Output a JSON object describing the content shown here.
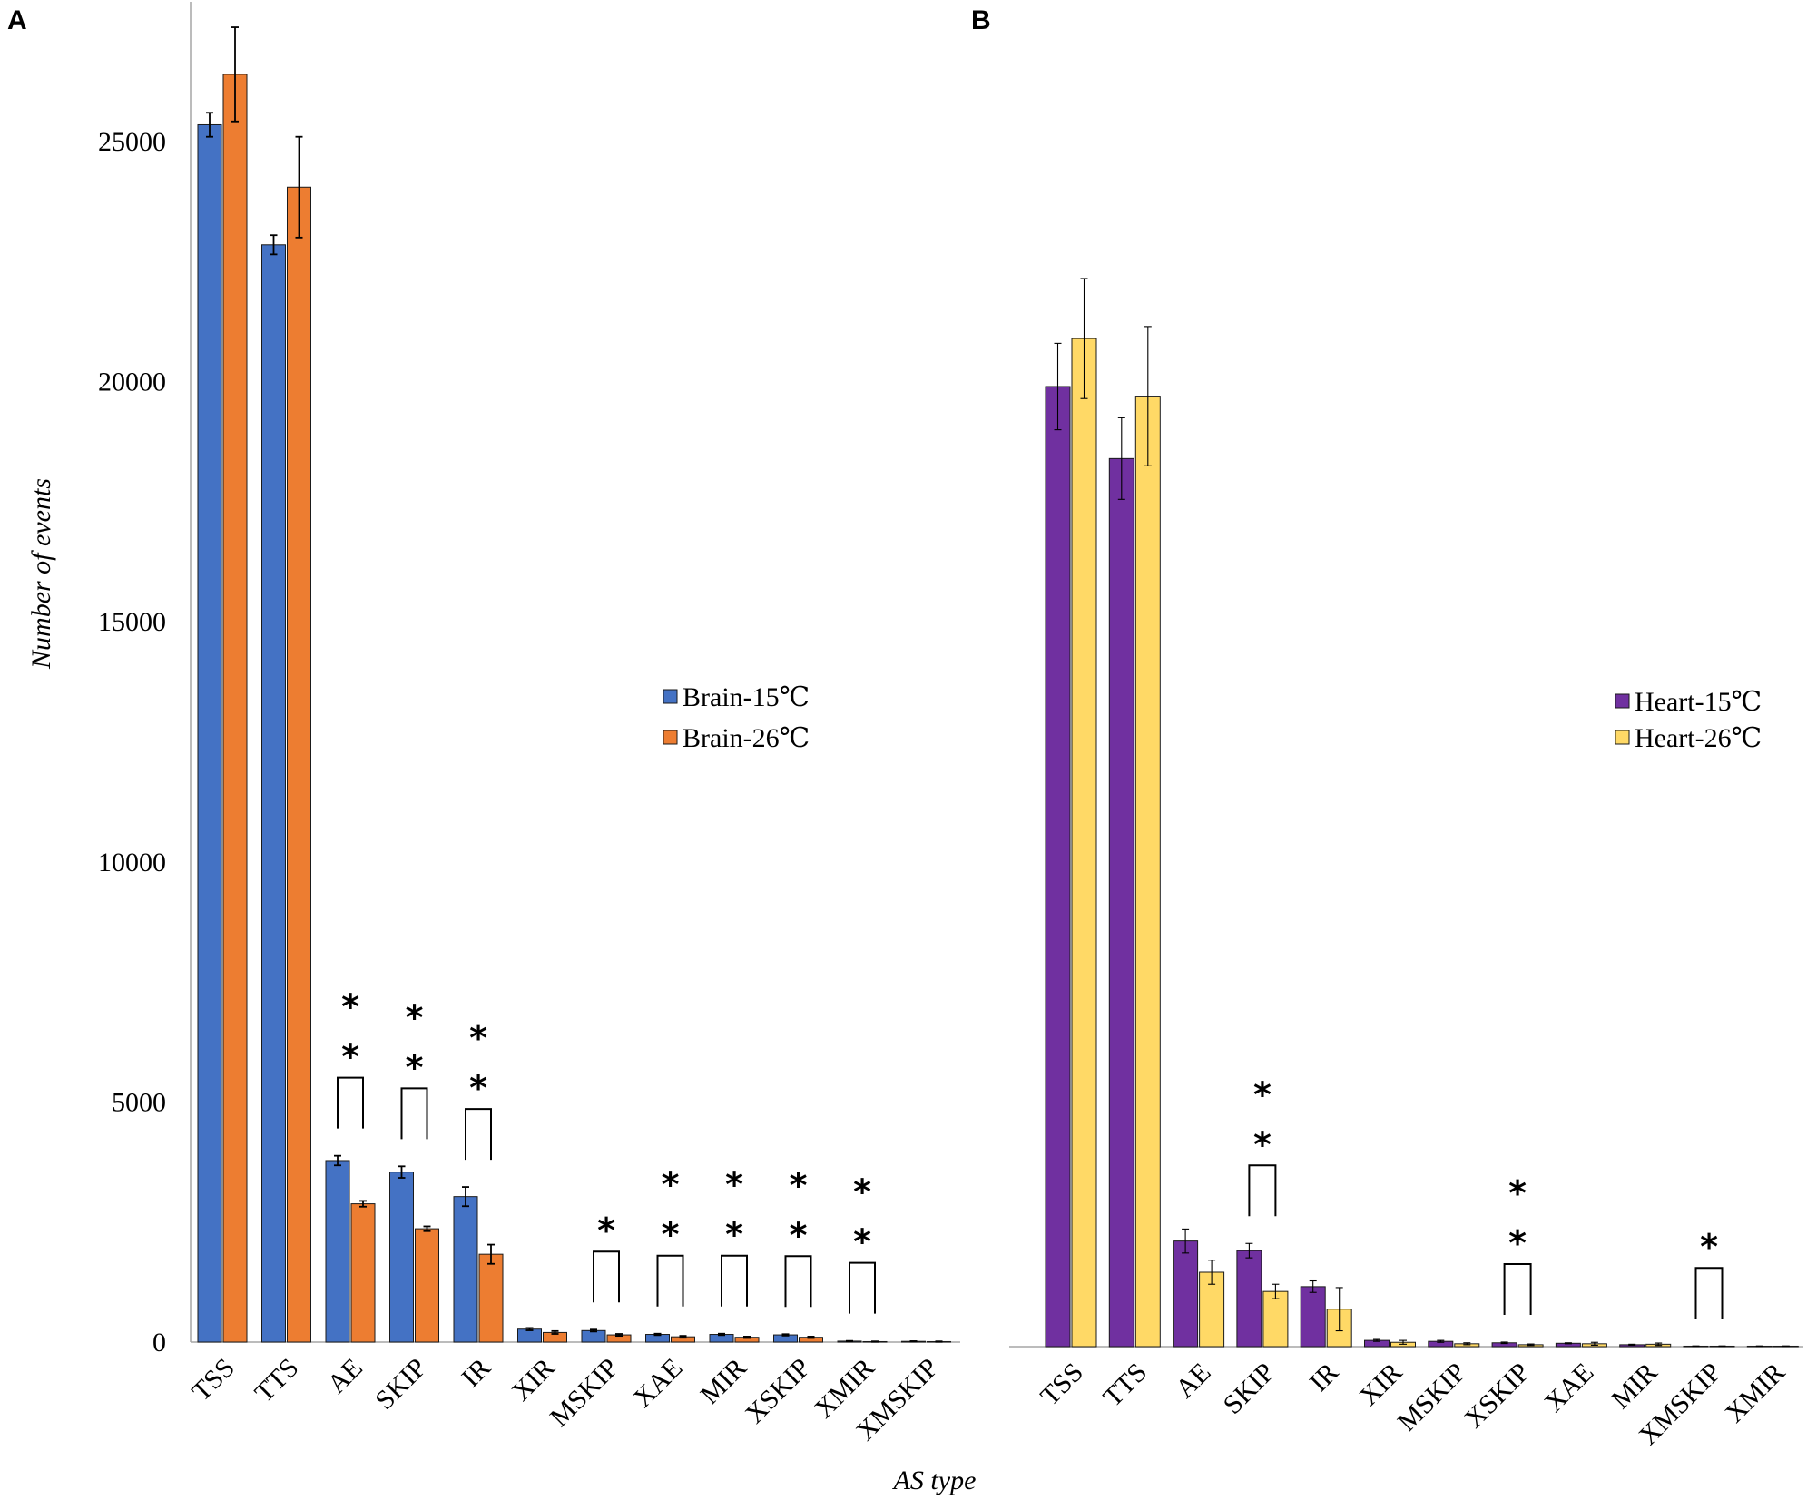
{
  "figure": {
    "y_axis_title": "Number of events",
    "x_axis_title": "AS type"
  },
  "chart_data": [
    {
      "panel": "A",
      "type": "bar",
      "title": "",
      "xlabel": "AS type",
      "ylabel": "Number of events",
      "ylim": [
        0,
        27500
      ],
      "yticks": [
        0,
        5000,
        10000,
        15000,
        20000,
        25000
      ],
      "grid": false,
      "legend_position": "right-middle",
      "categories": [
        "TSS",
        "TTS",
        "AE",
        "SKIP",
        "IR",
        "XIR",
        "MSKIP",
        "XAE",
        "MIR",
        "XSKIP",
        "XMIR",
        "XMSKIP"
      ],
      "series": [
        {
          "name": "Brain-15℃",
          "color": "#4472C4",
          "values": [
            25350,
            22850,
            3780,
            3540,
            3030,
            270,
            240,
            160,
            160,
            150,
            20,
            15
          ],
          "errors": [
            250,
            200,
            100,
            120,
            200,
            25,
            20,
            15,
            15,
            15,
            5,
            5
          ]
        },
        {
          "name": "Brain-26℃",
          "color": "#ED7D31",
          "values": [
            26400,
            24050,
            2880,
            2360,
            1830,
            200,
            150,
            110,
            100,
            100,
            10,
            10
          ],
          "errors": [
            980,
            1050,
            60,
            50,
            200,
            30,
            20,
            20,
            15,
            15,
            5,
            5
          ]
        }
      ],
      "significance": [
        {
          "category": "AE",
          "stars": [
            "*",
            "*"
          ]
        },
        {
          "category": "SKIP",
          "stars": [
            "*",
            "*"
          ]
        },
        {
          "category": "IR",
          "stars": [
            "*",
            "*"
          ]
        },
        {
          "category": "MSKIP",
          "stars": [
            "*"
          ]
        },
        {
          "category": "XAE",
          "stars": [
            "*",
            "*"
          ]
        },
        {
          "category": "MIR",
          "stars": [
            "*",
            "*"
          ]
        },
        {
          "category": "XSKIP",
          "stars": [
            "*",
            "*"
          ]
        },
        {
          "category": "XMIR",
          "stars": [
            "*",
            "*"
          ]
        }
      ]
    },
    {
      "panel": "B",
      "type": "bar",
      "title": "",
      "xlabel": "",
      "ylabel": "",
      "ylim": [
        0,
        27500
      ],
      "grid": false,
      "legend_position": "right-middle",
      "categories": [
        "TSS",
        "TTS",
        "AE",
        "SKIP",
        "IR",
        "XIR",
        "MSKIP",
        "XSKIP",
        "XAE",
        "MIR",
        "XMSKIP",
        "XMIR"
      ],
      "series": [
        {
          "name": "Heart-15℃",
          "color": "#7030A0",
          "values": [
            20000,
            18500,
            2200,
            2000,
            1250,
            130,
            110,
            80,
            70,
            40,
            10,
            10
          ],
          "errors": [
            900,
            850,
            250,
            150,
            120,
            20,
            20,
            15,
            10,
            10,
            5,
            5
          ]
        },
        {
          "name": "Heart-26℃",
          "color": "#FFD966",
          "values": [
            21000,
            19800,
            1550,
            1150,
            780,
            90,
            60,
            40,
            60,
            50,
            10,
            10
          ],
          "errors": [
            1250,
            1450,
            250,
            150,
            450,
            40,
            20,
            15,
            30,
            25,
            5,
            5
          ]
        }
      ],
      "significance": [
        {
          "category": "SKIP",
          "stars": [
            "*",
            "*"
          ]
        },
        {
          "category": "XSKIP",
          "stars": [
            "*",
            "*"
          ]
        },
        {
          "category": "XMSKIP",
          "stars": [
            "*"
          ]
        }
      ]
    }
  ]
}
